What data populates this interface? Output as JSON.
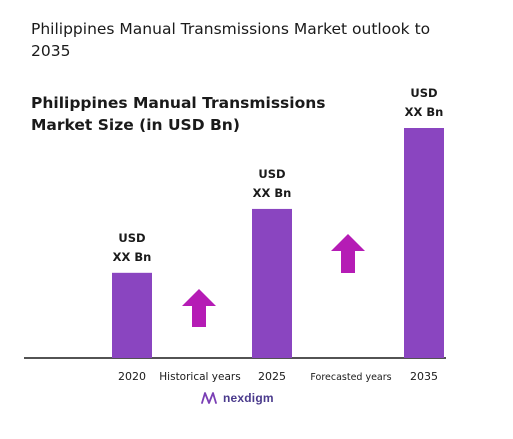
{
  "title": "Philippines Manual Transmissions Market outlook to 2035",
  "subtitle": "Philippines Manual Transmissions Market Size (in USD Bn)",
  "brand": "nexdigm",
  "colors": {
    "bar": "#8a45c0",
    "arrow": "#b51cb5",
    "axis": "#1a1a1a"
  },
  "chart_data": {
    "type": "bar",
    "title": "Philippines Manual Transmissions Market Size (in USD Bn)",
    "categories": [
      "2020",
      "2025",
      "2035"
    ],
    "values": [
      1.0,
      1.75,
      2.7
    ],
    "value_labels": [
      "USD\nXX Bn",
      "USD\nXX Bn",
      "USD\nXX Bn"
    ],
    "period_labels": [
      "Historical years",
      "Forecasted years"
    ],
    "ylim": [
      0,
      2.7
    ],
    "grid": false,
    "legend": "none"
  }
}
